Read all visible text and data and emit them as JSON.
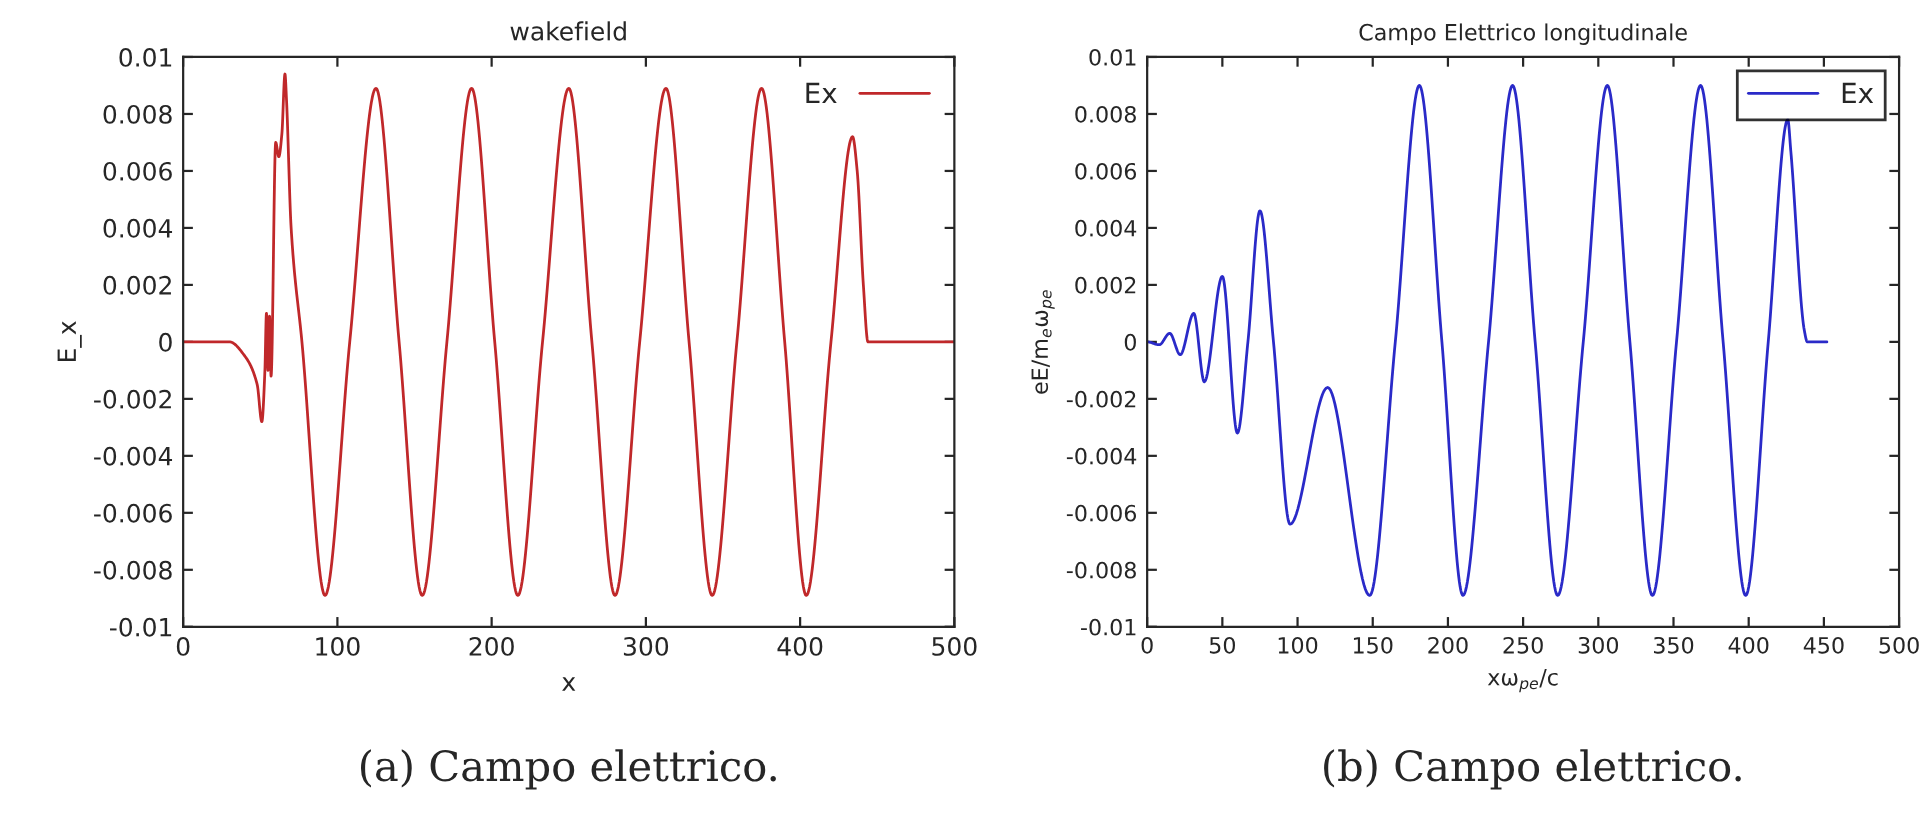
{
  "chart_data": [
    {
      "type": "line",
      "title": "wakefield",
      "xlabel": "x",
      "ylabel": "E_x",
      "xlim": [
        0,
        500
      ],
      "ylim": [
        -0.01,
        0.01
      ],
      "xticks": [
        0,
        100,
        200,
        300,
        400,
        500
      ],
      "yticks": [
        -0.01,
        -0.008,
        -0.006,
        -0.004,
        -0.002,
        0,
        0.002,
        0.004,
        0.006,
        0.008,
        0.01
      ],
      "grid": false,
      "legend": "top right",
      "annotations": [
        "(a) Campo elettrico."
      ],
      "series": [
        {
          "name": "Ex",
          "color": "#c0282a",
          "x": [
            0,
            30,
            40,
            48,
            51,
            53,
            54,
            55,
            56,
            57,
            60,
            62,
            64,
            66,
            67,
            70,
            77,
            92,
            108,
            125,
            140,
            155,
            171,
            187,
            202,
            217,
            233,
            250,
            265,
            280,
            296,
            313,
            328,
            343,
            359,
            375,
            390,
            404,
            420,
            434,
            437,
            441,
            444,
            500
          ],
          "values": [
            0,
            0,
            -0.0005,
            -0.0015,
            -0.0028,
            -0.001,
            0.001,
            -0.001,
            0.0009,
            -0.0012,
            0.007,
            0.0065,
            0.0073,
            0.0094,
            0.0085,
            0.004,
            0,
            -0.0089,
            0,
            0.0089,
            0,
            -0.0089,
            0,
            0.0089,
            0,
            -0.0089,
            0,
            0.0089,
            0,
            -0.0089,
            0,
            0.0089,
            0,
            -0.0089,
            0,
            0.0089,
            0,
            -0.0089,
            0,
            0.0072,
            0.006,
            0.002,
            0,
            0
          ]
        }
      ]
    },
    {
      "type": "line",
      "title": "Campo Elettrico longitudinale",
      "xlabel": "xω$_{pe}$/c",
      "ylabel": "eE/m$_{e}$ω$_{pe}$",
      "xlim": [
        0,
        500
      ],
      "ylim": [
        -0.01,
        0.01
      ],
      "xticks": [
        0,
        50,
        100,
        150,
        200,
        250,
        300,
        350,
        400,
        450,
        500
      ],
      "yticks": [
        -0.01,
        -0.008,
        -0.006,
        -0.004,
        -0.002,
        0,
        0.002,
        0.004,
        0.006,
        0.008,
        0.01
      ],
      "grid": false,
      "legend": "top right",
      "annotations": [
        "(b) Campo elettrico."
      ],
      "series": [
        {
          "name": "Ex",
          "color": "#2a2ac8",
          "x": [
            0,
            8,
            15,
            22,
            31,
            38,
            50,
            60,
            67,
            75,
            84,
            95,
            120,
            148,
            165,
            181,
            196,
            210,
            227,
            243,
            258,
            273,
            290,
            306,
            321,
            336,
            352,
            368,
            383,
            398,
            413,
            426,
            428,
            437,
            439,
            452
          ],
          "values": [
            0,
            -0.0001,
            0.0003,
            -0.00045,
            0.001,
            -0.0014,
            0.0023,
            -0.0032,
            0,
            0.0046,
            0,
            -0.0064,
            -0.0016,
            -0.0089,
            0,
            0.009,
            0,
            -0.0089,
            0,
            0.009,
            0,
            -0.0089,
            0,
            0.009,
            0,
            -0.0089,
            0,
            0.009,
            0,
            -0.0089,
            0,
            0.0078,
            0.0067,
            0.0004,
            0,
            0
          ]
        }
      ]
    }
  ]
}
